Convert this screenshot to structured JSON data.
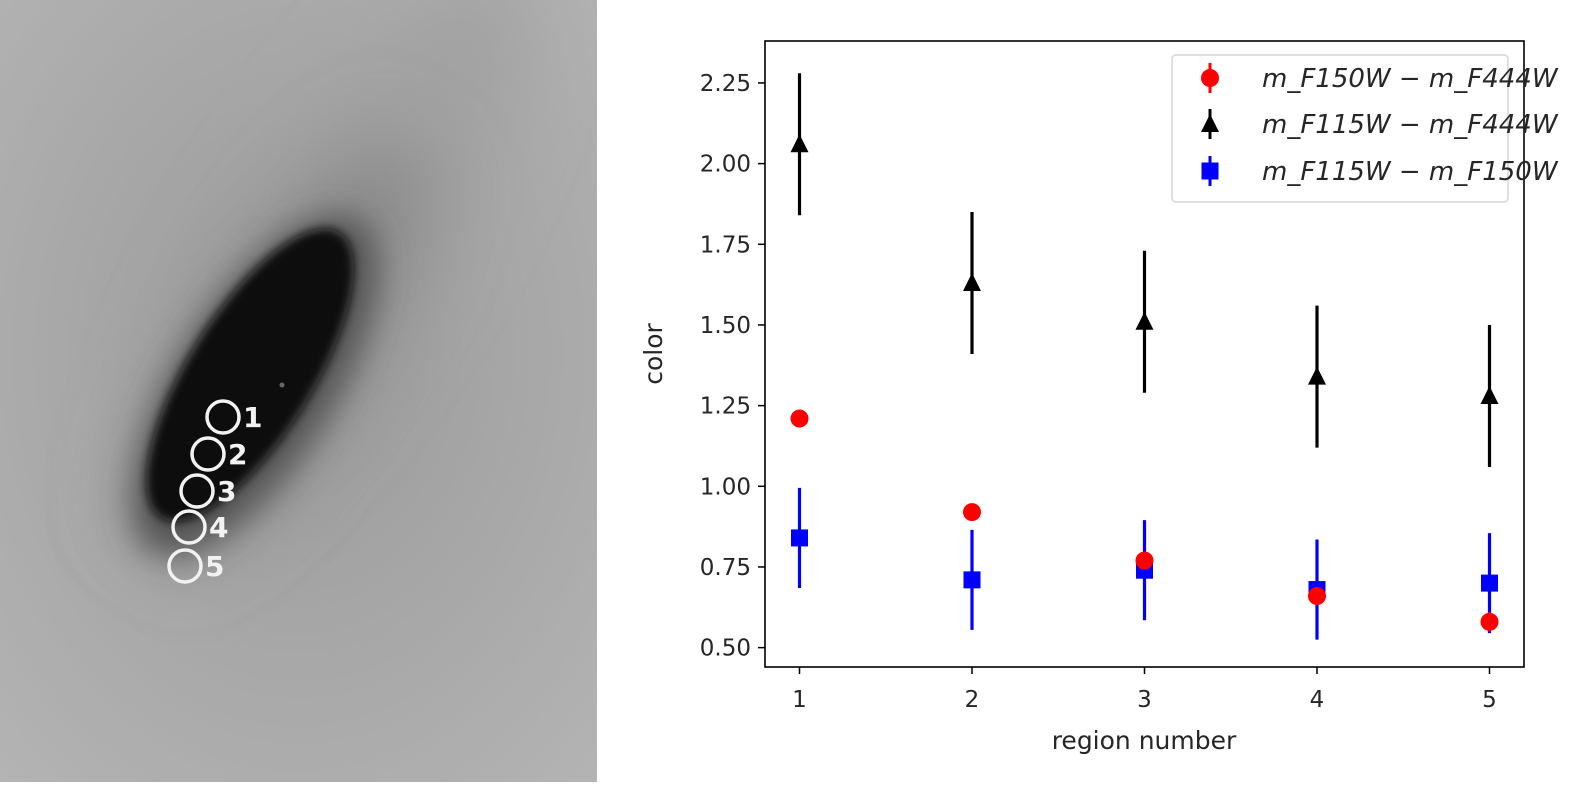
{
  "image_panel": {
    "region_labels": [
      "1",
      "2",
      "3",
      "4",
      "5"
    ]
  },
  "chart_data": {
    "type": "scatter",
    "title": "",
    "xlabel": "region number",
    "ylabel": "color",
    "x": [
      1,
      2,
      3,
      4,
      5
    ],
    "xticks": [
      "1",
      "2",
      "3",
      "4",
      "5"
    ],
    "xlim": [
      0.8,
      5.2
    ],
    "yticks": [
      "0.50",
      "0.75",
      "1.00",
      "1.25",
      "1.50",
      "1.75",
      "2.00",
      "2.25"
    ],
    "ylim": [
      0.44,
      2.38
    ],
    "grid": false,
    "legend_position": "upper right",
    "series": [
      {
        "legend_label": "m_F150W − m_F444W",
        "marker": "circle",
        "color": "#ff0000",
        "values": [
          1.21,
          0.92,
          0.77,
          0.66,
          0.58
        ],
        "yerr": [
          0.0,
          0.0,
          0.0,
          0.0,
          0.03
        ]
      },
      {
        "legend_label": "m_F115W − m_F444W",
        "marker": "triangle",
        "color": "#000000",
        "values": [
          2.06,
          1.63,
          1.51,
          1.34,
          1.28
        ],
        "yerr": [
          0.22,
          0.22,
          0.22,
          0.22,
          0.22
        ]
      },
      {
        "legend_label": "m_F115W − m_F150W",
        "marker": "square",
        "color": "#0000ff",
        "values": [
          0.84,
          0.71,
          0.74,
          0.68,
          0.7
        ],
        "yerr": [
          0.155,
          0.155,
          0.155,
          0.155,
          0.155
        ]
      }
    ]
  }
}
